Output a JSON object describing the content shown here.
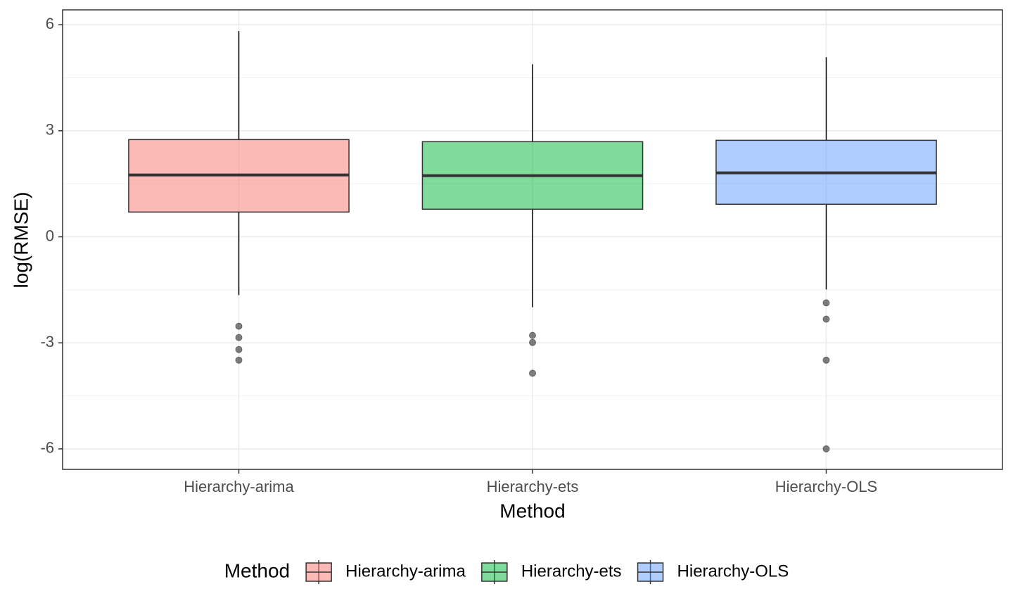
{
  "chart_data": {
    "type": "box",
    "x_label": "Method",
    "y_label": "log(RMSE)",
    "legend_title": "Method",
    "legend_position": "bottom",
    "grid": true,
    "categories": [
      "Hierarchy-arima",
      "Hierarchy-ets",
      "Hierarchy-OLS"
    ],
    "ylim": [
      -6.58,
      6.42
    ],
    "yticks": [
      -6,
      -3,
      0,
      3,
      6
    ],
    "series": [
      {
        "name": "Hierarchy-arima",
        "color": "#F8766D",
        "whisker_low": -1.65,
        "q1": 0.7,
        "median": 1.75,
        "q3": 2.75,
        "whisker_high": 5.82,
        "outliers": [
          -2.53,
          -2.85,
          -3.19,
          -3.49
        ]
      },
      {
        "name": "Hierarchy-ets",
        "color": "#00BA38",
        "whisker_low": -1.99,
        "q1": 0.78,
        "median": 1.73,
        "q3": 2.69,
        "whisker_high": 4.88,
        "outliers": [
          -2.79,
          -2.99,
          -3.86
        ]
      },
      {
        "name": "Hierarchy-OLS",
        "color": "#619CFF",
        "whisker_low": -1.49,
        "q1": 0.92,
        "median": 1.81,
        "q3": 2.73,
        "whisker_high": 5.08,
        "outliers": [
          -1.87,
          -2.33,
          -3.49,
          -6.0
        ]
      }
    ]
  }
}
